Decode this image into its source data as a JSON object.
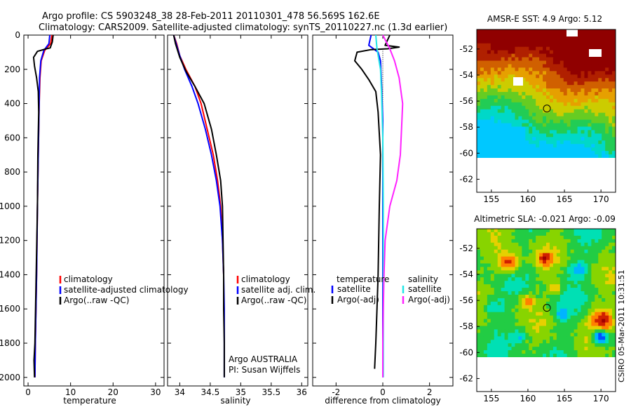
{
  "header": {
    "line1": "Argo profile: CS 5903248_38 28-Feb-2011 20110301_478 56.569S 162.6E",
    "line2": "Climatology: CARS2009. Satellite-adjusted climatology: synTS_20110227.nc (1.3d earlier)"
  },
  "credit": "CSIRO 05-Mar-2011 10:31:51",
  "colors": {
    "red": "#ff0000",
    "blue": "#0000ff",
    "black": "#000000",
    "cyan": "#22e6e6",
    "magenta": "#ff22ff"
  },
  "chart_data": [
    {
      "id": "temperature",
      "type": "line",
      "xlabel": "temperature",
      "ylabel": "",
      "xlim": [
        -1,
        32
      ],
      "ylim": [
        2050,
        0
      ],
      "xticks": [
        0,
        10,
        20,
        30
      ],
      "yticks": [
        0,
        200,
        400,
        600,
        800,
        1000,
        1200,
        1400,
        1600,
        1800,
        2000
      ],
      "legend": [
        "climatology",
        "satellite-adjusted climatology",
        "Argo(..raw -QC)"
      ],
      "series": [
        {
          "name": "climatology",
          "color": "red",
          "points": [
            [
              5.6,
              0
            ],
            [
              5.3,
              50
            ],
            [
              3.9,
              90
            ],
            [
              3.1,
              150
            ],
            [
              2.8,
              250
            ],
            [
              2.6,
              420
            ],
            [
              2.4,
              700
            ],
            [
              2.2,
              1000
            ],
            [
              2.0,
              1400
            ],
            [
              1.7,
              1800
            ],
            [
              1.6,
              2000
            ]
          ]
        },
        {
          "name": "satellite-adjusted climatology",
          "color": "blue",
          "points": [
            [
              5.1,
              0
            ],
            [
              4.9,
              50
            ],
            [
              3.7,
              90
            ],
            [
              3.0,
              150
            ],
            [
              2.7,
              250
            ],
            [
              2.6,
              400
            ],
            [
              2.4,
              700
            ],
            [
              2.2,
              1000
            ],
            [
              2.0,
              1400
            ],
            [
              1.7,
              1800
            ],
            [
              1.6,
              2000
            ]
          ]
        },
        {
          "name": "Argo(..raw -QC)",
          "color": "black",
          "points": [
            [
              5.9,
              0
            ],
            [
              5.7,
              40
            ],
            [
              5.2,
              75
            ],
            [
              4.3,
              80
            ],
            [
              2.2,
              95
            ],
            [
              1.3,
              130
            ],
            [
              1.5,
              180
            ],
            [
              2.0,
              250
            ],
            [
              2.4,
              330
            ],
            [
              2.5,
              450
            ],
            [
              2.3,
              700
            ],
            [
              2.2,
              1000
            ],
            [
              1.9,
              1400
            ],
            [
              1.6,
              1800
            ],
            [
              1.4,
              1900
            ],
            [
              1.5,
              2000
            ]
          ]
        }
      ]
    },
    {
      "id": "salinity",
      "type": "line",
      "xlabel": "salinity",
      "ylabel": "",
      "xlim": [
        33.8,
        36.1
      ],
      "ylim": [
        2050,
        0
      ],
      "xticks": [
        34,
        34.5,
        35,
        35.5,
        36
      ],
      "yticks": [
        0,
        200,
        400,
        600,
        800,
        1000,
        1200,
        1400,
        1600,
        1800,
        2000
      ],
      "legend": [
        "climatology",
        "satellite adj. clim.",
        "Argo(..raw -QC)"
      ],
      "annotation": [
        "Argo AUSTRALIA",
        "PI: Susan Wijffels"
      ],
      "series": [
        {
          "name": "climatology",
          "color": "red",
          "points": [
            [
              33.9,
              0
            ],
            [
              33.95,
              50
            ],
            [
              34.0,
              120
            ],
            [
              34.1,
              200
            ],
            [
              34.25,
              300
            ],
            [
              34.35,
              400
            ],
            [
              34.45,
              550
            ],
            [
              34.55,
              700
            ],
            [
              34.62,
              850
            ],
            [
              34.67,
              1000
            ],
            [
              34.7,
              1200
            ],
            [
              34.72,
              1400
            ]
          ]
        },
        {
          "name": "satellite adj. clim.",
          "color": "blue",
          "points": [
            [
              33.9,
              0
            ],
            [
              33.94,
              50
            ],
            [
              34.0,
              120
            ],
            [
              34.08,
              200
            ],
            [
              34.2,
              300
            ],
            [
              34.3,
              400
            ],
            [
              34.42,
              550
            ],
            [
              34.52,
              700
            ],
            [
              34.6,
              850
            ],
            [
              34.66,
              1000
            ],
            [
              34.7,
              1200
            ],
            [
              34.72,
              1400
            ],
            [
              34.73,
              1600
            ],
            [
              34.73,
              1800
            ],
            [
              34.73,
              2000
            ]
          ]
        },
        {
          "name": "Argo(..raw -QC)",
          "color": "black",
          "points": [
            [
              33.9,
              0
            ],
            [
              33.93,
              50
            ],
            [
              34.0,
              130
            ],
            [
              34.1,
              210
            ],
            [
              34.25,
              300
            ],
            [
              34.4,
              400
            ],
            [
              34.52,
              550
            ],
            [
              34.6,
              700
            ],
            [
              34.67,
              850
            ],
            [
              34.7,
              1000
            ],
            [
              34.71,
              1200
            ],
            [
              34.72,
              1400
            ],
            [
              34.72,
              1600
            ],
            [
              34.73,
              1800
            ],
            [
              34.73,
              2000
            ]
          ]
        }
      ]
    },
    {
      "id": "difference",
      "type": "line",
      "xlabel": "difference from climatology",
      "ylabel": "",
      "xlim": [
        -3,
        3
      ],
      "ylim": [
        2050,
        0
      ],
      "xticks": [
        -2,
        0,
        2
      ],
      "yticks": [
        0,
        200,
        400,
        600,
        800,
        1000,
        1200,
        1400,
        1600,
        1800,
        2000
      ],
      "legend_left": {
        "title": "temperature",
        "items": [
          "satellite",
          "Argo(-adj)"
        ]
      },
      "legend_right": {
        "title": "salinity",
        "items": [
          "satellite",
          "Argo(-adj)"
        ]
      },
      "series": [
        {
          "name": "temperature satellite",
          "color": "blue",
          "points": [
            [
              -0.5,
              0
            ],
            [
              -0.6,
              60
            ],
            [
              -0.2,
              100
            ],
            [
              -0.1,
              150
            ],
            [
              -0.05,
              300
            ],
            [
              0,
              500
            ],
            [
              0,
              800
            ],
            [
              0,
              1200
            ],
            [
              0,
              1600
            ],
            [
              0,
              2000
            ]
          ]
        },
        {
          "name": "temperature Argo(-adj)",
          "color": "black",
          "points": [
            [
              0.3,
              0
            ],
            [
              0.1,
              60
            ],
            [
              0.7,
              70
            ],
            [
              0.2,
              80
            ],
            [
              -0.5,
              85
            ],
            [
              -1.1,
              100
            ],
            [
              -1.2,
              150
            ],
            [
              -0.9,
              200
            ],
            [
              -0.6,
              260
            ],
            [
              -0.3,
              330
            ],
            [
              -0.2,
              450
            ],
            [
              -0.1,
              700
            ],
            [
              -0.15,
              1000
            ],
            [
              -0.2,
              1400
            ],
            [
              -0.25,
              1600
            ],
            [
              -0.3,
              1800
            ],
            [
              -0.35,
              1950
            ]
          ]
        },
        {
          "name": "salinity satellite",
          "color": "cyan",
          "points": [
            [
              -0.3,
              0
            ],
            [
              -0.25,
              80
            ],
            [
              -0.1,
              200
            ],
            [
              -0.05,
              350
            ],
            [
              0,
              600
            ],
            [
              0.02,
              1000
            ],
            [
              0.02,
              1400
            ],
            [
              0.02,
              1800
            ],
            [
              0.02,
              2000
            ]
          ]
        },
        {
          "name": "salinity Argo(-adj)",
          "color": "magenta",
          "points": [
            [
              0,
              0
            ],
            [
              0.3,
              80
            ],
            [
              0.5,
              150
            ],
            [
              0.7,
              250
            ],
            [
              0.85,
              400
            ],
            [
              0.8,
              550
            ],
            [
              0.75,
              700
            ],
            [
              0.6,
              850
            ],
            [
              0.3,
              1000
            ],
            [
              0.1,
              1200
            ],
            [
              0.05,
              1400
            ],
            [
              0.02,
              1600
            ],
            [
              0,
              1800
            ],
            [
              0,
              2000
            ]
          ]
        }
      ]
    },
    {
      "id": "sst-map",
      "type": "heatmap",
      "title": "AMSR-E SST: 4.9 Argo: 5.12",
      "xlim": [
        153,
        172
      ],
      "ylim": [
        -63,
        -50.5
      ],
      "xticks": [
        155,
        160,
        165,
        170
      ],
      "yticks": [
        -52,
        -54,
        -56,
        -58,
        -60,
        -62
      ],
      "data_extent_lat": [
        -60,
        -50.5
      ],
      "profile_location": {
        "lon": 162.6,
        "lat": -56.57
      },
      "description_palette": [
        "#00c8ff",
        "#00d8c8",
        "#22cc55",
        "#66cc22",
        "#cccc00",
        "#e6a000",
        "#d06000",
        "#b02000",
        "#900000"
      ]
    },
    {
      "id": "sla-map",
      "type": "heatmap",
      "title": "Altimetric SLA: -0.021 Argo: -0.09",
      "xlim": [
        153,
        172
      ],
      "ylim": [
        -63,
        -50.5
      ],
      "xticks": [
        155,
        160,
        165,
        170
      ],
      "yticks": [
        -52,
        -54,
        -56,
        -58,
        -60,
        -62
      ],
      "data_extent_lat": [
        -60,
        -50.5
      ],
      "profile_location": {
        "lon": 162.6,
        "lat": -56.57
      }
    }
  ]
}
